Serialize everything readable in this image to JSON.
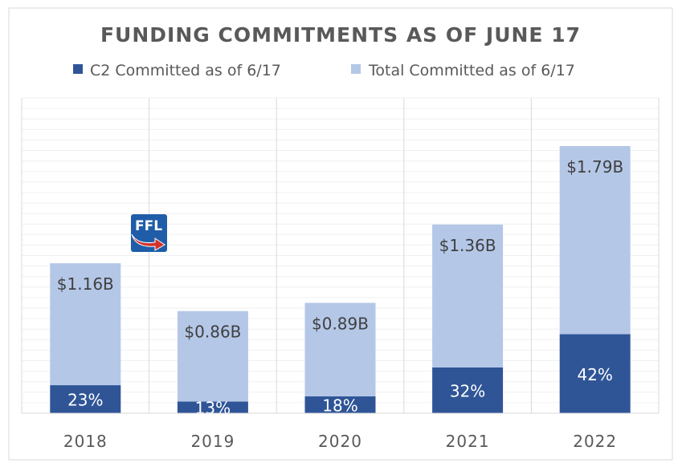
{
  "chart_data": {
    "type": "bar",
    "stacked": true,
    "title": "FUNDING COMMITMENTS AS OF JUNE 17",
    "categories": [
      "2018",
      "2019",
      "2020",
      "2021",
      "2022"
    ],
    "series": [
      {
        "name": "C2 Committed as of 6/17",
        "color": "#2F5597",
        "values_pct_of_total": [
          23,
          13,
          18,
          32,
          42
        ],
        "labels": [
          "23%",
          "13%",
          "18%",
          "32%",
          "42%"
        ]
      },
      {
        "name": "Total Committed as of 6/17",
        "color": "#B4C7E7",
        "values_billion": [
          1.16,
          0.86,
          0.89,
          1.36,
          1.79
        ],
        "labels": [
          "$1.16B",
          "$0.86B",
          "$0.89B",
          "$1.36B",
          "$1.79B"
        ]
      }
    ],
    "ylim": [
      0,
      3
    ],
    "yaxis_visible": false,
    "grid": true,
    "legend": "top"
  },
  "logo": {
    "text": "FFL",
    "bg": "#1F5DA8",
    "arrow": "#D0342C"
  }
}
